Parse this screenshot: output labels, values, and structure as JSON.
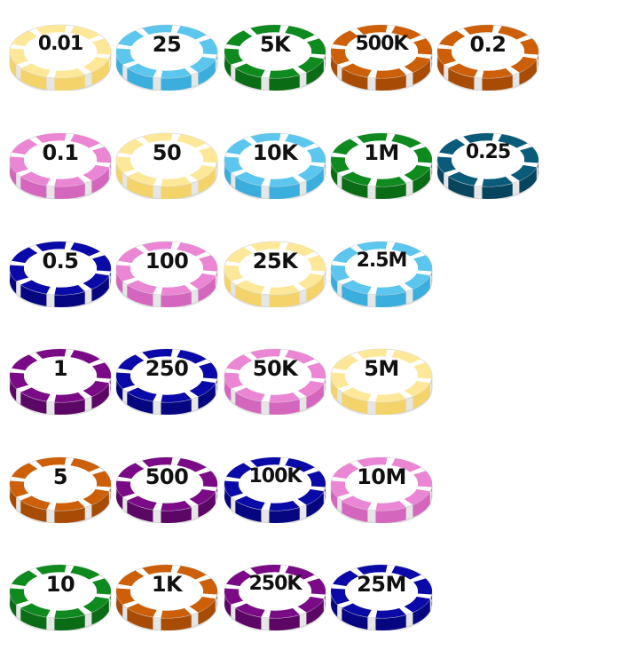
{
  "chips": [
    {
      "label": "0.01",
      "color": "#fde89a",
      "side": "#f3d36a"
    },
    {
      "label": "25",
      "color": "#5cc6ee",
      "side": "#3aaedc"
    },
    {
      "label": "5K",
      "color": "#0f8a1e",
      "side": "#0a6d16"
    },
    {
      "label": "500K",
      "color": "#cc5f08",
      "side": "#a84c05"
    },
    {
      "label": "0.2",
      "color": "#cc5f08",
      "side": "#a84c05"
    },
    {
      "label": "0.1",
      "color": "#ea86d4",
      "side": "#d466bd"
    },
    {
      "label": "50",
      "color": "#fde89a",
      "side": "#f3d36a"
    },
    {
      "label": "10K",
      "color": "#5cc6ee",
      "side": "#3aaedc"
    },
    {
      "label": "1M",
      "color": "#0f8a1e",
      "side": "#0a6d16"
    },
    {
      "label": "0.25",
      "color": "#0a5a7a",
      "side": "#07445d"
    },
    {
      "label": "0.5",
      "color": "#0a0aa8",
      "side": "#060680"
    },
    {
      "label": "100",
      "color": "#ea86d4",
      "side": "#d466bd"
    },
    {
      "label": "25K",
      "color": "#fde89a",
      "side": "#f3d36a"
    },
    {
      "label": "2.5M",
      "color": "#5cc6ee",
      "side": "#3aaedc"
    },
    {
      "label": "1",
      "color": "#7a0a86",
      "side": "#5c0666"
    },
    {
      "label": "250",
      "color": "#0a0aa8",
      "side": "#060680"
    },
    {
      "label": "50K",
      "color": "#ea86d4",
      "side": "#d466bd"
    },
    {
      "label": "5M",
      "color": "#fde89a",
      "side": "#f3d36a"
    },
    {
      "label": "5",
      "color": "#cc5f08",
      "side": "#a84c05"
    },
    {
      "label": "500",
      "color": "#7a0a86",
      "side": "#5c0666"
    },
    {
      "label": "100K",
      "color": "#0a0aa8",
      "side": "#060680"
    },
    {
      "label": "10M",
      "color": "#ea86d4",
      "side": "#d466bd"
    },
    {
      "label": "10",
      "color": "#0f8a1e",
      "side": "#0a6d16"
    },
    {
      "label": "1K",
      "color": "#cc5f08",
      "side": "#a84c05"
    },
    {
      "label": "250K",
      "color": "#7a0a86",
      "side": "#5c0666"
    },
    {
      "label": "25M",
      "color": "#0a0aa8",
      "side": "#060680"
    }
  ]
}
